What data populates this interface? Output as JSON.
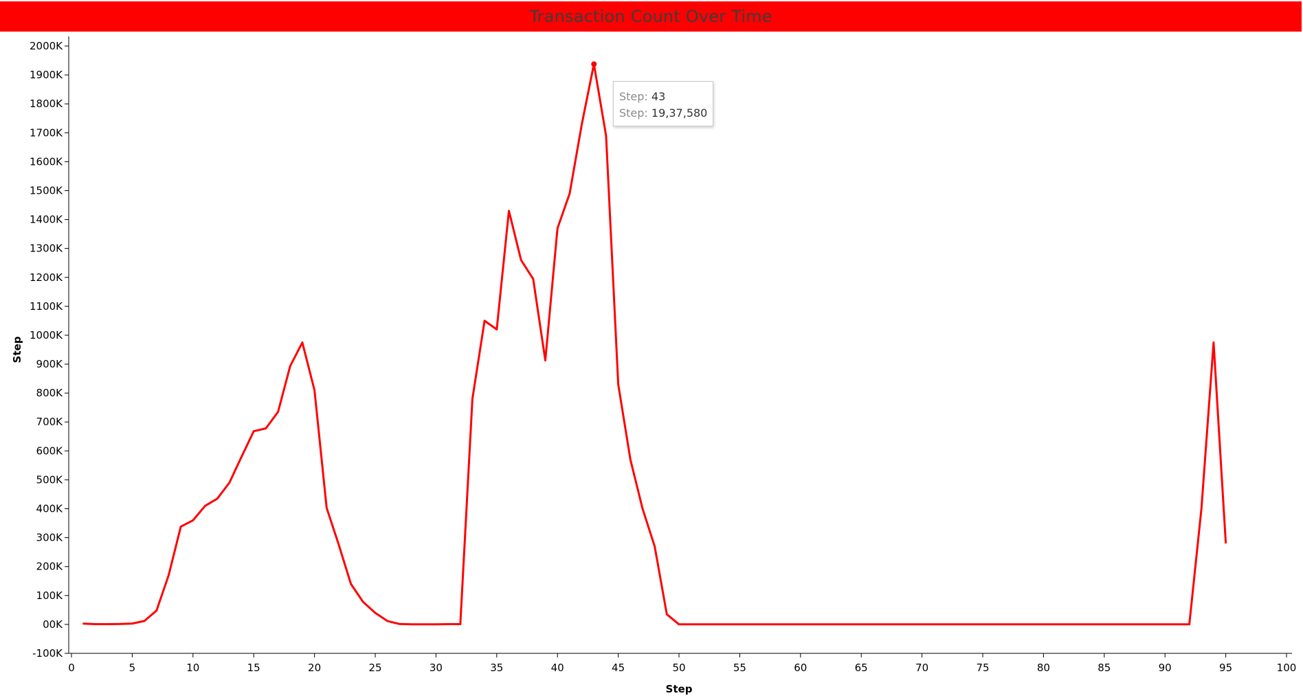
{
  "chart_data": {
    "type": "line",
    "title": "Transaction Count Over Time",
    "xlabel": "Step",
    "ylabel": "Step",
    "xlim": [
      0,
      100
    ],
    "ylim": [
      -100000,
      2000000
    ],
    "x_ticks": [
      "0",
      "5",
      "10",
      "15",
      "20",
      "25",
      "30",
      "35",
      "40",
      "45",
      "50",
      "55",
      "60",
      "65",
      "70",
      "75",
      "80",
      "85",
      "90",
      "95",
      "100"
    ],
    "y_ticks": [
      "-100K",
      "00K",
      "100K",
      "200K",
      "300K",
      "400K",
      "500K",
      "600K",
      "700K",
      "800K",
      "900K",
      "1000K",
      "1100K",
      "1200K",
      "1300K",
      "1400K",
      "1500K",
      "1600K",
      "1700K",
      "1800K",
      "1900K",
      "2000K"
    ],
    "series_color": "#ff0000",
    "grid": false,
    "series": [
      {
        "x": [
          1,
          2,
          3,
          4,
          5,
          6,
          7,
          8,
          9,
          10,
          11,
          12,
          13,
          14,
          15,
          16,
          17,
          18,
          19,
          20,
          21,
          22,
          23,
          24,
          25,
          26,
          27,
          28,
          29,
          30,
          31,
          32,
          33,
          34,
          35,
          36,
          37,
          38,
          39,
          40,
          41,
          42,
          43,
          44,
          45,
          46,
          47,
          48,
          49,
          50,
          51,
          52,
          53,
          54,
          55,
          56,
          57,
          58,
          59,
          60,
          61,
          62,
          63,
          64,
          65,
          66,
          67,
          68,
          69,
          70,
          71,
          72,
          73,
          74,
          75,
          76,
          77,
          78,
          79,
          80,
          81,
          82,
          83,
          84,
          85,
          86,
          87,
          88,
          89,
          90,
          91,
          92,
          93,
          94,
          95
        ],
        "values": [
          2708,
          1014,
          1000,
          1500,
          3000,
          12000,
          48000,
          170000,
          338000,
          360000,
          410000,
          435000,
          490000,
          580000,
          668000,
          678000,
          735000,
          893000,
          975000,
          810000,
          403000,
          275000,
          140000,
          78000,
          40000,
          12000,
          1500,
          500,
          500,
          500,
          1000,
          1000,
          780000,
          1050000,
          1020000,
          1430000,
          1260000,
          1195000,
          913000,
          1370000,
          1490000,
          1730000,
          1937580,
          1690000,
          830000,
          570000,
          400000,
          270000,
          35000,
          200,
          500,
          500,
          500,
          200,
          300,
          500,
          300,
          400,
          500,
          400,
          300,
          300,
          200,
          300,
          500,
          400,
          300,
          400,
          500,
          300,
          500,
          400,
          200,
          400,
          300,
          300,
          400,
          500,
          400,
          300,
          300,
          200,
          300,
          400,
          500,
          400,
          300,
          300,
          200,
          300,
          300,
          300,
          400000,
          975000,
          283000
        ]
      }
    ],
    "highlight": {
      "x": 43,
      "value": 1937580,
      "tooltip": [
        {
          "key": "Step:",
          "value": "43"
        },
        {
          "key": "Step:",
          "value": "19,37,580"
        }
      ]
    }
  }
}
